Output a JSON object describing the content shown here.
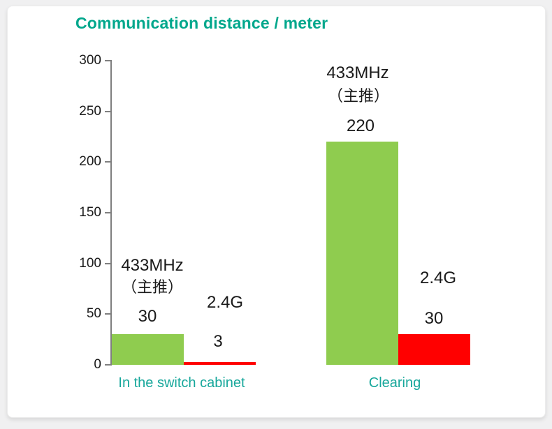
{
  "title": "Communication distance / meter",
  "colors": {
    "title_text": "#00A78C",
    "category_text": "#17A79B",
    "bar_433mhz": "#8FCC4F",
    "bar_24g": "#FF0000",
    "axis": "#7F7F7F",
    "value_text": "#1A1A1A",
    "page_bg": "#F0F0F1",
    "card_bg": "#FFFFFF"
  },
  "chart_data": {
    "type": "bar",
    "title": "Communication distance / meter",
    "categories": [
      "In the switch cabinet",
      "Clearing"
    ],
    "series": [
      {
        "name": "433MHz（主推）",
        "color": "#8FCC4F",
        "values": [
          30,
          220
        ]
      },
      {
        "name": "2.4G",
        "color": "#FF0000",
        "values": [
          3,
          30
        ]
      }
    ],
    "xlabel": "",
    "ylabel": "",
    "ylim": [
      0,
      300
    ],
    "yticks": [
      0,
      50,
      100,
      150,
      200,
      250,
      300
    ],
    "grid": false,
    "legend_position": "none",
    "bar_labels": {
      "group1_433mhz": {
        "name_line1": "433MHz",
        "name_line2": "（主推）",
        "value": "30"
      },
      "group1_24g": {
        "name": "2.4G",
        "value": "3"
      },
      "group2_433mhz": {
        "name_line1": "433MHz",
        "name_line2": "（主推）",
        "value": "220"
      },
      "group2_24g": {
        "name": "2.4G",
        "value": "30"
      }
    }
  }
}
